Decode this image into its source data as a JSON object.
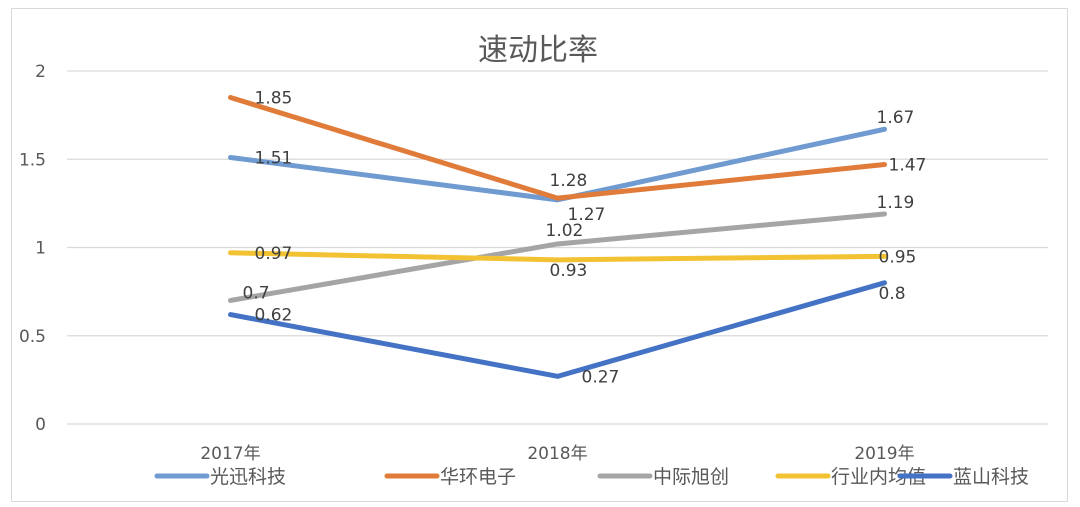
{
  "chart_data": {
    "type": "line",
    "title": "速动比率",
    "xlabel": "",
    "ylabel": "",
    "categories": [
      "2017年",
      "2018年",
      "2019年"
    ],
    "ylim": [
      0,
      2
    ],
    "yticks": [
      "0",
      "0.5",
      "1",
      "1.5",
      "2"
    ],
    "ytick_values": [
      0,
      0.5,
      1,
      1.5,
      2
    ],
    "grid": true,
    "legend_position": "bottom",
    "series": [
      {
        "name": "光迅科技",
        "color": "#6f9bd1",
        "values": [
          1.51,
          1.27,
          1.67
        ],
        "labels": [
          "1.51",
          "1.27",
          "1.67"
        ]
      },
      {
        "name": "华环电子",
        "color": "#e07b39",
        "values": [
          1.85,
          1.28,
          1.47
        ],
        "labels": [
          "1.85",
          "1.28",
          "1.47"
        ]
      },
      {
        "name": "中际旭创",
        "color": "#a5a5a5",
        "values": [
          0.7,
          1.02,
          1.19
        ],
        "labels": [
          "0.7",
          "1.02",
          "1.19"
        ]
      },
      {
        "name": "行业内均值",
        "color": "#f2c233",
        "values": [
          0.97,
          0.93,
          0.95
        ],
        "labels": [
          "0.97",
          "0.93",
          "0.95"
        ]
      },
      {
        "name": "蓝山科技",
        "color": "#4472c4",
        "values": [
          0.62,
          0.27,
          0.8
        ],
        "labels": [
          "0.62",
          "0.27",
          "0.8"
        ]
      }
    ]
  }
}
